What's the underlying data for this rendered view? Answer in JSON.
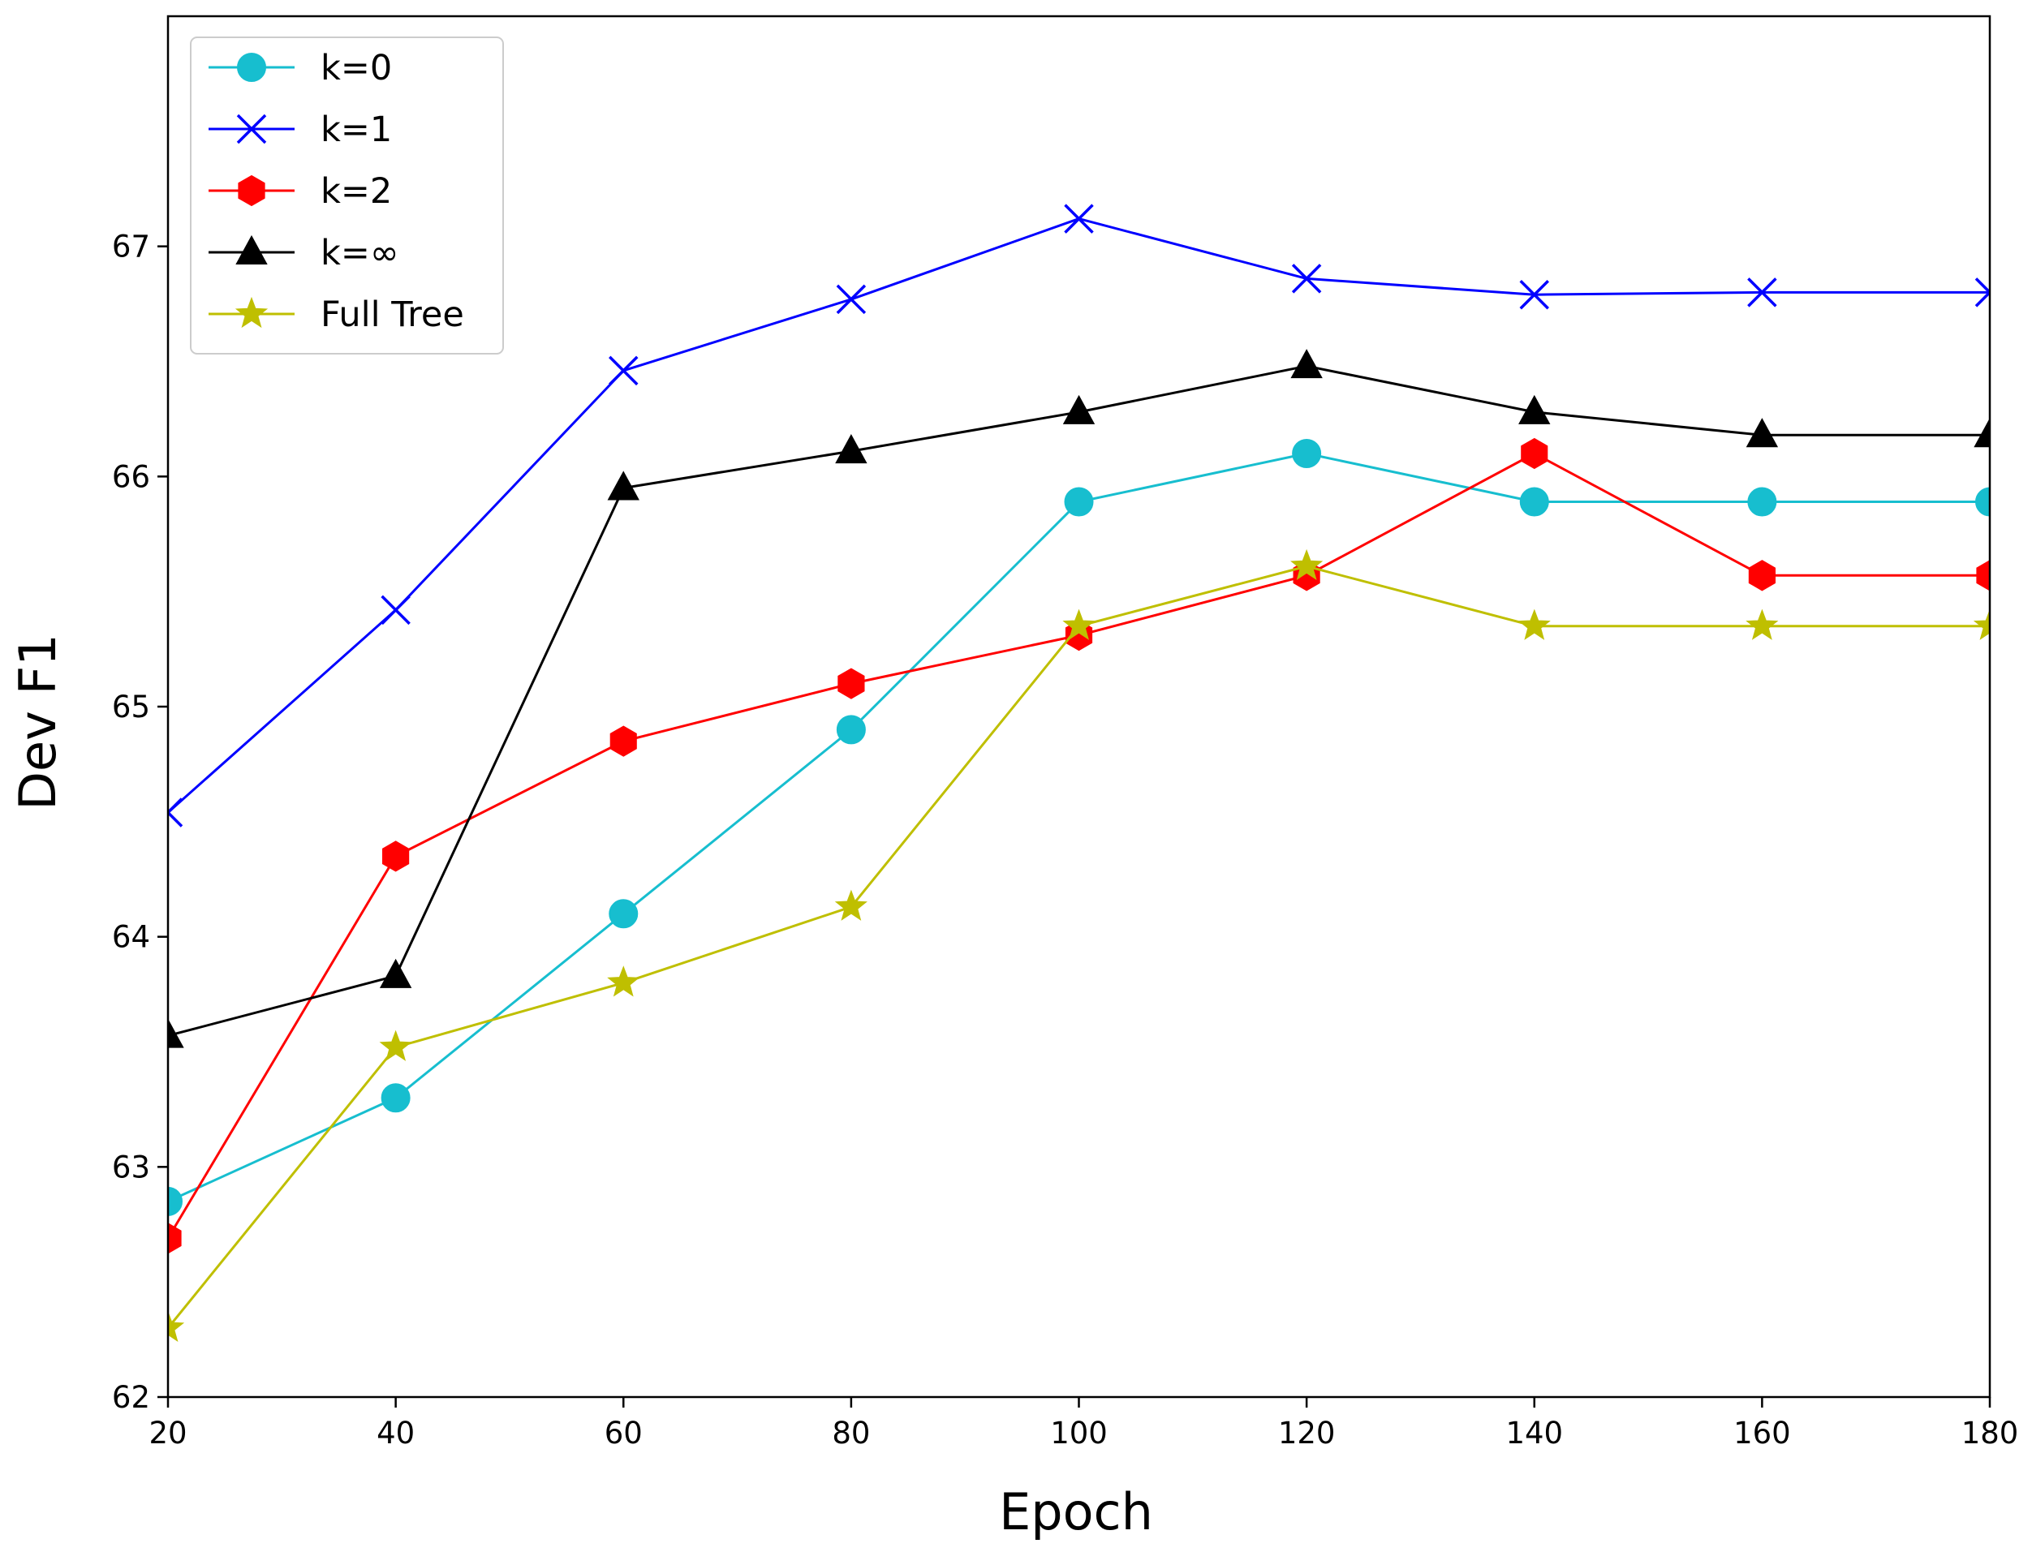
{
  "chart_data": {
    "type": "line",
    "title": "",
    "xlabel": "Epoch",
    "ylabel": "Dev F1",
    "xlim": [
      20,
      180
    ],
    "ylim": [
      62,
      68
    ],
    "xticks": [
      20,
      40,
      60,
      80,
      100,
      120,
      140,
      160,
      180
    ],
    "yticks": [
      62,
      63,
      64,
      65,
      66,
      67
    ],
    "xtick_labels": [
      "20",
      "40",
      "60",
      "80",
      "100",
      "120",
      "140",
      "160",
      "180"
    ],
    "ytick_labels": [
      "62",
      "63",
      "64",
      "65",
      "66",
      "67"
    ],
    "legend_position": "top-left",
    "grid": false,
    "x": [
      20,
      40,
      60,
      80,
      100,
      120,
      140,
      160,
      180
    ],
    "series": [
      {
        "name": "k=0",
        "marker": "circle",
        "color": "#17becf",
        "values": [
          62.85,
          63.3,
          64.1,
          64.9,
          65.89,
          66.1,
          65.89,
          65.89,
          65.89
        ]
      },
      {
        "name": "k=1",
        "marker": "x",
        "color": "#0000ff",
        "values": [
          64.54,
          65.42,
          66.46,
          66.77,
          67.12,
          66.86,
          66.79,
          66.8,
          66.8
        ]
      },
      {
        "name": "k=2",
        "marker": "hexagon",
        "color": "#ff0000",
        "values": [
          62.69,
          64.35,
          64.85,
          65.1,
          65.31,
          65.57,
          66.1,
          65.57,
          65.57
        ]
      },
      {
        "name": "k=∞",
        "marker": "triangle",
        "color": "#000000",
        "values": [
          63.57,
          63.83,
          65.95,
          66.11,
          66.28,
          66.48,
          66.28,
          66.18,
          66.18
        ]
      },
      {
        "name": "Full Tree",
        "marker": "star",
        "color": "#bfbf00",
        "values": [
          62.3,
          63.52,
          63.8,
          64.13,
          65.35,
          65.61,
          65.35,
          65.35,
          65.35
        ]
      }
    ]
  }
}
